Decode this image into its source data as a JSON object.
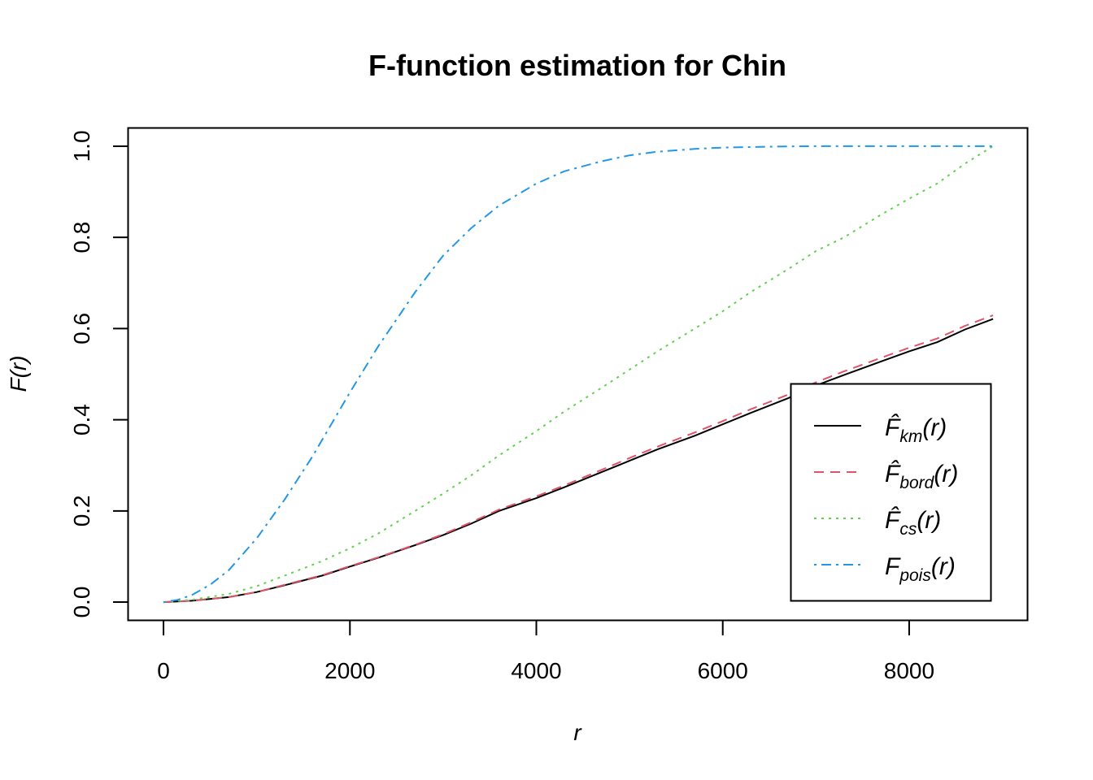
{
  "chart_data": {
    "type": "line",
    "title": "F-function estimation for Chin",
    "xlabel": "r",
    "ylabel": "F(r)",
    "xlim": [
      -380,
      9270
    ],
    "ylim": [
      -0.04,
      1.04
    ],
    "x_ticks": [
      0,
      2000,
      4000,
      6000,
      8000
    ],
    "x_tick_labels": [
      "0",
      "2000",
      "4000",
      "6000",
      "8000"
    ],
    "y_ticks": [
      0.0,
      0.2,
      0.4,
      0.6,
      0.8,
      1.0
    ],
    "y_tick_labels": [
      "0.0",
      "0.2",
      "0.4",
      "0.6",
      "0.8",
      "1.0"
    ],
    "grid": false,
    "legend_position": "bottom-right",
    "series": [
      {
        "name": "F̂_km(r)",
        "legend_main": "F̂",
        "legend_sub": "km",
        "legend_suffix": "(r)",
        "color": "#000000",
        "dash": "solid",
        "x": [
          0,
          300,
          700,
          1000,
          1300,
          1700,
          2000,
          2300,
          2700,
          3000,
          3300,
          3600,
          4000,
          4300,
          4700,
          5000,
          5300,
          5700,
          6000,
          6300,
          6700,
          7000,
          7300,
          7700,
          8000,
          8300,
          8600,
          8900
        ],
        "y": [
          0.0,
          0.003,
          0.011,
          0.022,
          0.037,
          0.058,
          0.078,
          0.097,
          0.125,
          0.147,
          0.172,
          0.2,
          0.228,
          0.252,
          0.285,
          0.31,
          0.335,
          0.365,
          0.39,
          0.415,
          0.447,
          0.475,
          0.498,
          0.528,
          0.55,
          0.57,
          0.598,
          0.621
        ]
      },
      {
        "name": "F̂_bord(r)",
        "legend_main": "F̂",
        "legend_sub": "bord",
        "legend_suffix": "(r)",
        "color": "#df536b",
        "dash": "dashed",
        "x": [
          0,
          300,
          700,
          1000,
          1300,
          1700,
          2000,
          2300,
          2700,
          3000,
          3300,
          3600,
          4000,
          4300,
          4700,
          5000,
          5300,
          5700,
          6000,
          6300,
          6700,
          7000,
          7300,
          7700,
          8000,
          8300,
          8600,
          8900
        ],
        "y": [
          0.0,
          0.003,
          0.011,
          0.022,
          0.038,
          0.059,
          0.079,
          0.098,
          0.126,
          0.149,
          0.175,
          0.203,
          0.232,
          0.256,
          0.29,
          0.316,
          0.341,
          0.372,
          0.397,
          0.423,
          0.455,
          0.482,
          0.506,
          0.536,
          0.558,
          0.578,
          0.606,
          0.629
        ]
      },
      {
        "name": "F̂_cs(r)",
        "legend_main": "F̂",
        "legend_sub": "cs",
        "legend_suffix": "(r)",
        "color": "#61d04f",
        "dash": "dotted",
        "x": [
          0,
          300,
          700,
          1000,
          1300,
          1700,
          2000,
          2300,
          2700,
          3000,
          3300,
          3600,
          4000,
          4300,
          4700,
          5000,
          5300,
          5700,
          6000,
          6300,
          6700,
          7000,
          7300,
          7700,
          8000,
          8300,
          8600,
          8900
        ],
        "y": [
          0.0,
          0.005,
          0.018,
          0.035,
          0.058,
          0.09,
          0.118,
          0.15,
          0.2,
          0.238,
          0.278,
          0.322,
          0.375,
          0.418,
          0.47,
          0.51,
          0.55,
          0.6,
          0.638,
          0.68,
          0.73,
          0.77,
          0.8,
          0.85,
          0.885,
          0.918,
          0.962,
          1.0
        ]
      },
      {
        "name": "F_pois(r)",
        "legend_main": "F",
        "legend_sub": "pois",
        "legend_suffix": "(r)",
        "color": "#2297e6",
        "dash": "dotdash",
        "x": [
          0,
          150,
          300,
          500,
          700,
          1000,
          1300,
          1600,
          2000,
          2300,
          2700,
          3000,
          3300,
          3600,
          4000,
          4300,
          4700,
          5000,
          5300,
          5700,
          6000,
          6500,
          7000,
          7500,
          8000,
          8500,
          8900
        ],
        "y": [
          0.0,
          0.005,
          0.015,
          0.038,
          0.07,
          0.14,
          0.225,
          0.32,
          0.46,
          0.56,
          0.68,
          0.76,
          0.82,
          0.87,
          0.918,
          0.945,
          0.967,
          0.98,
          0.988,
          0.994,
          0.997,
          0.999,
          1.0,
          1.0,
          1.0,
          1.0,
          1.0
        ]
      }
    ]
  }
}
